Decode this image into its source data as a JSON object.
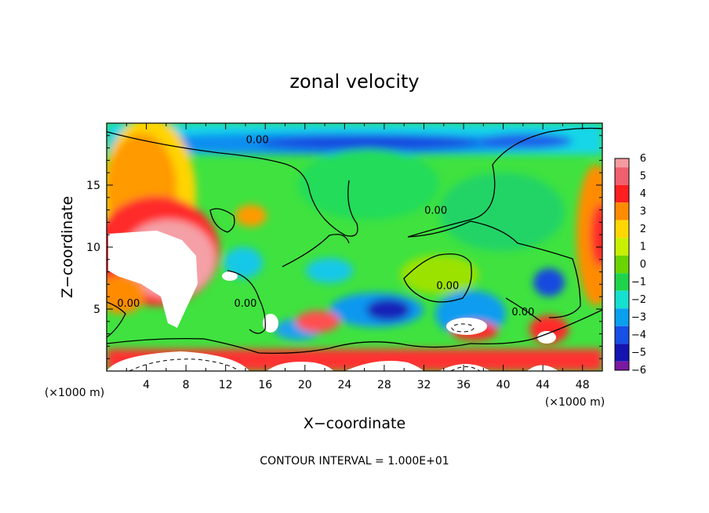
{
  "chart_data": {
    "type": "heatmap",
    "title": "zonal velocity",
    "xlabel": "X−coordinate",
    "ylabel": "Z−coordinate",
    "x_unit_left": "(×1000 m)",
    "x_unit_right": "(×1000 m)",
    "xlim": [
      0,
      50
    ],
    "ylim": [
      0,
      20
    ],
    "x_ticks": [
      4,
      8,
      12,
      16,
      20,
      24,
      28,
      32,
      36,
      40,
      44,
      48
    ],
    "x_tick_labels": [
      "4",
      "8",
      "12",
      "16",
      "20",
      "24",
      "28",
      "32",
      "36",
      "40",
      "44",
      "48"
    ],
    "y_ticks": [
      5,
      10,
      15
    ],
    "y_tick_labels": [
      "5",
      "10",
      "15"
    ],
    "colorbar": {
      "min": -6,
      "max": 6,
      "levels": [
        6,
        5,
        4,
        3,
        2,
        1,
        0,
        -1,
        -2,
        -3,
        -4,
        -5,
        -6
      ],
      "labels": [
        "6",
        "5",
        "4",
        "3",
        "2",
        "1",
        "0",
        "−1",
        "−2",
        "−3",
        "−4",
        "−5",
        "−6"
      ],
      "colors": [
        "#f49ba0",
        "#f0606e",
        "#ff1f1f",
        "#ff8c00",
        "#ffd700",
        "#c8f000",
        "#6ad400",
        "#1fd44a",
        "#16e0d0",
        "#0aa0f0",
        "#1650e6",
        "#1414b0",
        "#7a1aa0"
      ]
    },
    "contour_labels": [
      {
        "text": "0.00",
        "x": 15.2,
        "y": 18.4
      },
      {
        "text": "0.00",
        "x": 33.2,
        "y": 12.7
      },
      {
        "text": "0.00",
        "x": 34.4,
        "y": 6.6
      },
      {
        "text": "0.00",
        "x": 14.0,
        "y": 5.2
      },
      {
        "text": "0.00",
        "x": 2.2,
        "y": 5.2
      },
      {
        "text": "0.00",
        "x": 42.0,
        "y": 4.5
      }
    ],
    "contour_interval_text": "CONTOUR INTERVAL = 1.000E+01"
  }
}
